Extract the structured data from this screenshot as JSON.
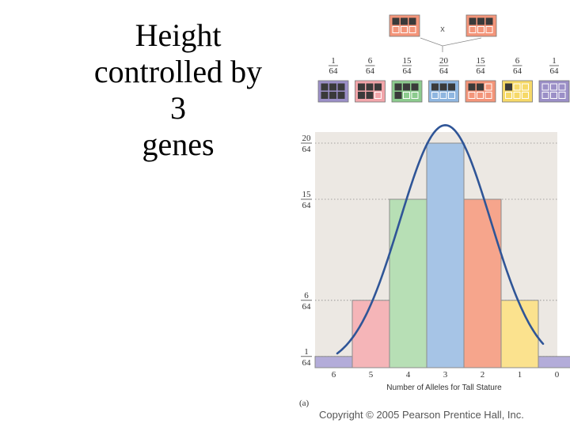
{
  "title_lines": [
    "Height",
    "controlled by",
    "3",
    "genes"
  ],
  "cross_symbol": "x",
  "parents": {
    "dark_cells": 3,
    "color": "#f4957a"
  },
  "offspring": [
    {
      "numerator": "1",
      "denominator": "64",
      "dark_cells": 6,
      "color": "#9b8fc7"
    },
    {
      "numerator": "6",
      "denominator": "64",
      "dark_cells": 5,
      "color": "#f2a5aa"
    },
    {
      "numerator": "15",
      "denominator": "64",
      "dark_cells": 4,
      "color": "#8ccb8e"
    },
    {
      "numerator": "20",
      "denominator": "64",
      "dark_cells": 3,
      "color": "#8fb6e0"
    },
    {
      "numerator": "15",
      "denominator": "64",
      "dark_cells": 2,
      "color": "#f4957a"
    },
    {
      "numerator": "6",
      "denominator": "64",
      "dark_cells": 1,
      "color": "#f6d968"
    },
    {
      "numerator": "1",
      "denominator": "64",
      "dark_cells": 0,
      "color": "#9b8fc7"
    }
  ],
  "chart_data": {
    "type": "bar",
    "categories": [
      "6",
      "5",
      "4",
      "3",
      "2",
      "1",
      "0"
    ],
    "values": [
      1,
      6,
      15,
      20,
      15,
      6,
      1
    ],
    "ylim": [
      0,
      20
    ],
    "y_ticks": [
      {
        "value": 1,
        "numerator": "1",
        "denominator": "64"
      },
      {
        "value": 6,
        "numerator": "6",
        "denominator": "64"
      },
      {
        "value": 15,
        "numerator": "15",
        "denominator": "64"
      },
      {
        "value": 20,
        "numerator": "20",
        "denominator": "64"
      }
    ],
    "xlabel": "Number of Alleles for Tall Stature",
    "ylabel": "",
    "colors": [
      "#b3acd9",
      "#f5b5b8",
      "#b7dfb5",
      "#a6c4e6",
      "#f6a58c",
      "#fbe28e",
      "#b3acd9"
    ],
    "curve_color": "#2f5597",
    "background": "#ece8e3",
    "grid": "dotted horizontal at tick values"
  },
  "panel_label": "(a)",
  "copyright": "Copyright © 2005 Pearson Prentice Hall, Inc."
}
